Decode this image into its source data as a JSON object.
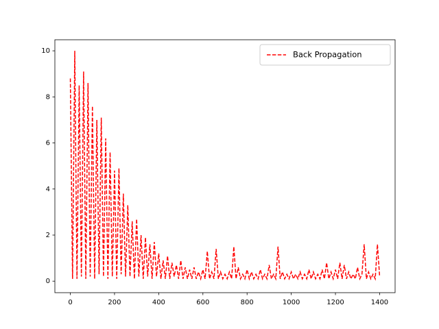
{
  "chart_data": {
    "type": "line",
    "x": [
      0,
      10,
      20,
      30,
      40,
      50,
      60,
      70,
      80,
      90,
      100,
      110,
      120,
      130,
      140,
      150,
      160,
      170,
      180,
      190,
      200,
      210,
      220,
      230,
      240,
      250,
      260,
      270,
      280,
      290,
      300,
      310,
      320,
      330,
      340,
      350,
      360,
      370,
      380,
      390,
      400,
      410,
      420,
      430,
      440,
      450,
      460,
      470,
      480,
      490,
      500,
      510,
      520,
      530,
      540,
      550,
      560,
      570,
      580,
      590,
      600,
      610,
      620,
      630,
      640,
      650,
      660,
      670,
      680,
      690,
      700,
      710,
      720,
      730,
      740,
      750,
      760,
      770,
      780,
      790,
      800,
      810,
      820,
      830,
      840,
      850,
      860,
      870,
      880,
      890,
      900,
      910,
      920,
      930,
      940,
      950,
      960,
      970,
      980,
      990,
      1000,
      1010,
      1020,
      1030,
      1040,
      1050,
      1060,
      1070,
      1080,
      1090,
      1100,
      1110,
      1120,
      1130,
      1140,
      1150,
      1160,
      1170,
      1180,
      1190,
      1200,
      1210,
      1220,
      1230,
      1240,
      1250,
      1260,
      1270,
      1280,
      1290,
      1300,
      1310,
      1320,
      1330,
      1340,
      1350,
      1360,
      1370,
      1380,
      1390,
      1400
    ],
    "series": [
      {
        "name": "Back Propagation",
        "color": "#ff0000",
        "linestyle": "dashed",
        "values": [
          8.8,
          0.1,
          10.0,
          0.1,
          8.5,
          0.2,
          9.1,
          0.1,
          8.6,
          0.2,
          7.6,
          0.1,
          7.0,
          0.3,
          7.1,
          0.2,
          6.2,
          0.1,
          5.6,
          0.2,
          4.8,
          0.1,
          4.9,
          0.3,
          3.8,
          0.2,
          3.3,
          0.2,
          2.6,
          0.1,
          2.7,
          0.2,
          2.0,
          0.1,
          1.9,
          0.2,
          1.6,
          0.1,
          1.7,
          0.2,
          1.2,
          0.1,
          0.9,
          0.1,
          1.1,
          0.1,
          0.8,
          0.2,
          0.7,
          0.1,
          0.9,
          0.1,
          0.6,
          0.1,
          0.5,
          0.1,
          0.6,
          0.1,
          0.4,
          0.1,
          0.5,
          0.1,
          1.3,
          0.1,
          0.4,
          0.1,
          1.4,
          0.1,
          0.4,
          0.1,
          0.3,
          0.1,
          0.4,
          0.1,
          1.5,
          0.1,
          0.6,
          0.1,
          0.3,
          0.1,
          0.5,
          0.1,
          0.4,
          0.1,
          0.3,
          0.1,
          0.5,
          0.1,
          0.3,
          0.1,
          0.7,
          0.1,
          0.3,
          0.1,
          1.5,
          0.1,
          0.4,
          0.1,
          0.3,
          0.1,
          0.4,
          0.1,
          0.3,
          0.1,
          0.4,
          0.1,
          0.3,
          0.1,
          0.5,
          0.1,
          0.4,
          0.1,
          0.3,
          0.1,
          0.5,
          0.1,
          0.8,
          0.1,
          0.4,
          0.1,
          0.5,
          0.1,
          0.8,
          0.1,
          0.7,
          0.1,
          0.4,
          0.1,
          0.3,
          0.1,
          0.6,
          0.1,
          0.3,
          1.6,
          0.1,
          0.4,
          0.1,
          0.3,
          0.1,
          1.6,
          0.2
        ]
      }
    ],
    "xlim": [
      -70,
      1470
    ],
    "ylim": [
      -0.5,
      10.48
    ],
    "xticks": [
      0,
      200,
      400,
      600,
      800,
      1000,
      1200,
      1400
    ],
    "yticks": [
      0,
      2,
      4,
      6,
      8,
      10
    ],
    "grid": false,
    "legend": "upper right"
  }
}
